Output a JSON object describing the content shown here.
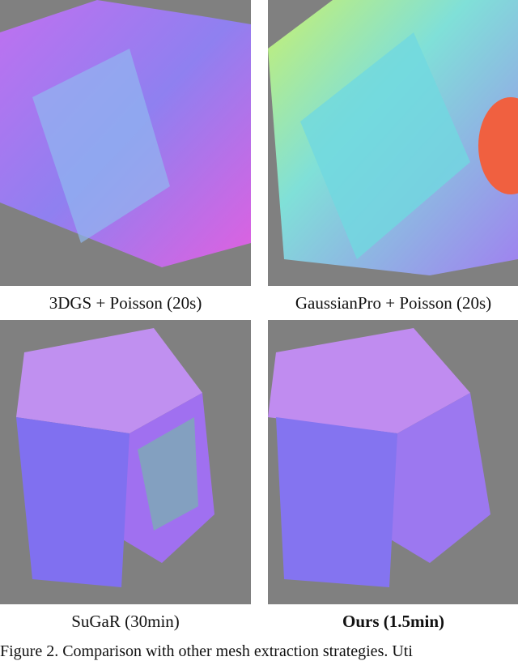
{
  "figure": {
    "panels": [
      {
        "label": "3DGS + Poisson (20s)",
        "bold": false
      },
      {
        "label": "GaussianPro + Poisson (20s)",
        "bold": false
      },
      {
        "label": "SuGaR (30min)",
        "bold": false
      },
      {
        "label": "Ours (1.5min)",
        "bold": true
      }
    ],
    "caption": "Figure 2. Comparison with other mesh extraction strategies. Uti",
    "colors": {
      "background": "#808080",
      "normal_purple": "#9a6ff0",
      "normal_cyan": "#6fe0e0",
      "normal_pink": "#e070e8"
    }
  }
}
